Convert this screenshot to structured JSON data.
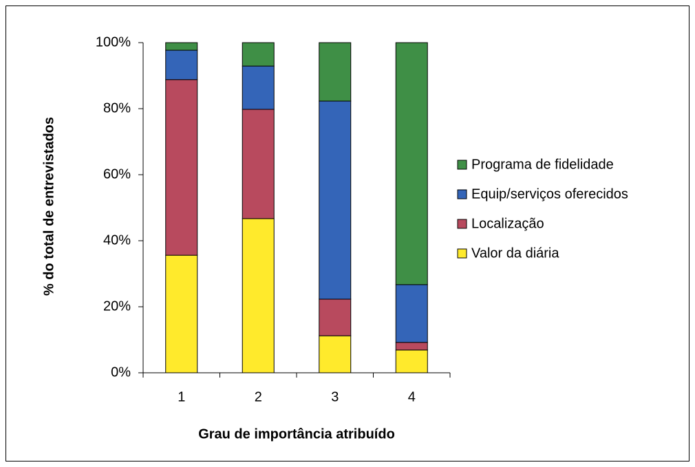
{
  "chart_data": {
    "type": "stacked_bar",
    "x_label": "Grau de importância atribuído",
    "y_label": "% do total de entrevistados",
    "categories": [
      "1",
      "2",
      "3",
      "4"
    ],
    "series": [
      {
        "name": "Valor da diária",
        "color": "#ffea2c",
        "values": [
          35.6,
          46.7,
          11.2,
          6.9
        ]
      },
      {
        "name": "Localização",
        "color": "#b84a5e",
        "values": [
          53.2,
          33.1,
          11.1,
          2.3
        ]
      },
      {
        "name": "Equip/serviços oferecidos",
        "color": "#3465b8",
        "values": [
          8.9,
          13.1,
          60.0,
          17.5
        ]
      },
      {
        "name": "Programa de fidelidade",
        "color": "#3f8f46",
        "values": [
          2.3,
          7.1,
          17.7,
          73.3
        ]
      }
    ],
    "ylim": [
      0,
      100
    ],
    "yticks": [
      {
        "value": 0,
        "label": "0%"
      },
      {
        "value": 20,
        "label": "20%"
      },
      {
        "value": 40,
        "label": "40%"
      },
      {
        "value": 60,
        "label": "60%"
      },
      {
        "value": 80,
        "label": "80%"
      },
      {
        "value": 100,
        "label": "100%"
      }
    ],
    "legend": "right"
  }
}
